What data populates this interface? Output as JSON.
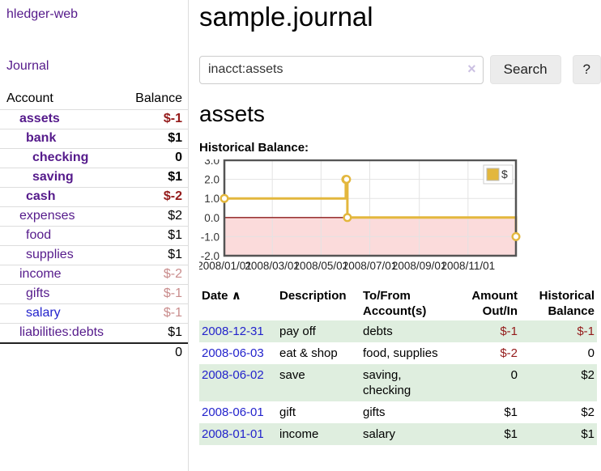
{
  "app": {
    "title": "hledger-web",
    "nav_journal": "Journal"
  },
  "sidebar": {
    "header": {
      "account": "Account",
      "balance": "Balance"
    },
    "accounts": [
      {
        "name": "assets",
        "balance": "$-1",
        "depth": 1,
        "bold": true
      },
      {
        "name": "bank",
        "balance": "$1",
        "depth": 2,
        "bold": true
      },
      {
        "name": "checking",
        "balance": "0",
        "depth": 3,
        "bold": true
      },
      {
        "name": "saving",
        "balance": "$1",
        "depth": 3,
        "bold": true
      },
      {
        "name": "cash",
        "balance": "$-2",
        "depth": 2,
        "bold": true
      },
      {
        "name": "expenses",
        "balance": "$2",
        "depth": 1
      },
      {
        "name": "food",
        "balance": "$1",
        "depth": 2
      },
      {
        "name": "supplies",
        "balance": "$1",
        "depth": 2
      },
      {
        "name": "income",
        "balance": "$-2",
        "depth": 1,
        "dimmed": true
      },
      {
        "name": "gifts",
        "balance": "$-1",
        "depth": 2,
        "dimmed": true
      },
      {
        "name": "salary",
        "balance": "$-1",
        "depth": 2,
        "dimmed": true,
        "link": "blue"
      },
      {
        "name": "liabilities:debts",
        "balance": "$1",
        "depth": 1
      }
    ],
    "total": "0"
  },
  "header": {
    "title": "sample.journal"
  },
  "search": {
    "value": "inacct:assets",
    "clear": "×",
    "button": "Search",
    "help": "?"
  },
  "main": {
    "heading": "assets",
    "chart_label": "Historical Balance:"
  },
  "chart_data": {
    "type": "line",
    "title": "Historical Balance",
    "series": [
      {
        "name": "$",
        "style": "step-after",
        "color": "#e3b73d",
        "points": [
          {
            "date": "2008-01-01",
            "value": 1
          },
          {
            "date": "2008-06-01",
            "value": 2
          },
          {
            "date": "2008-06-02",
            "value": 2
          },
          {
            "date": "2008-06-03",
            "value": 0
          },
          {
            "date": "2008-12-31",
            "value": -1
          }
        ]
      }
    ],
    "x_range": [
      "2008-01-01",
      "2008-12-31"
    ],
    "x_ticks": [
      "2008/01/01",
      "2008/03/01",
      "2008/05/01",
      "2008/07/01",
      "2008/09/01",
      "2008/11/01"
    ],
    "y_ticks": [
      3.0,
      2.0,
      1.0,
      0.0,
      -1.0,
      -2.0
    ],
    "ylim": [
      -2,
      3
    ],
    "grid": true,
    "negative_region_color": "#fbdbdb",
    "zero_line_color": "#8b1a1a",
    "legend": {
      "label": "$",
      "position": "top-right"
    }
  },
  "table": {
    "headers": [
      {
        "line1": "Date",
        "sort": "∧",
        "align": "left"
      },
      {
        "line1": "Description",
        "line2": "",
        "align": "left"
      },
      {
        "line1": "To/From",
        "line2": "Account(s)",
        "align": "left"
      },
      {
        "line1": "Amount",
        "line2": "Out/In",
        "align": "right"
      },
      {
        "line1": "Historical",
        "line2": "Balance",
        "align": "right"
      }
    ],
    "rows": [
      {
        "date": "2008-12-31",
        "description": "pay off",
        "accounts": "debts",
        "amount": "$-1",
        "balance": "$-1"
      },
      {
        "date": "2008-06-03",
        "description": "eat & shop",
        "accounts": "food, supplies",
        "amount": "$-2",
        "balance": "0"
      },
      {
        "date": "2008-06-02",
        "description": "save",
        "accounts": "saving, checking",
        "amount": "0",
        "balance": "$2"
      },
      {
        "date": "2008-06-01",
        "description": "gift",
        "accounts": "gifts",
        "amount": "$1",
        "balance": "$2"
      },
      {
        "date": "2008-01-01",
        "description": "income",
        "accounts": "salary",
        "amount": "$1",
        "balance": "$1"
      }
    ]
  }
}
